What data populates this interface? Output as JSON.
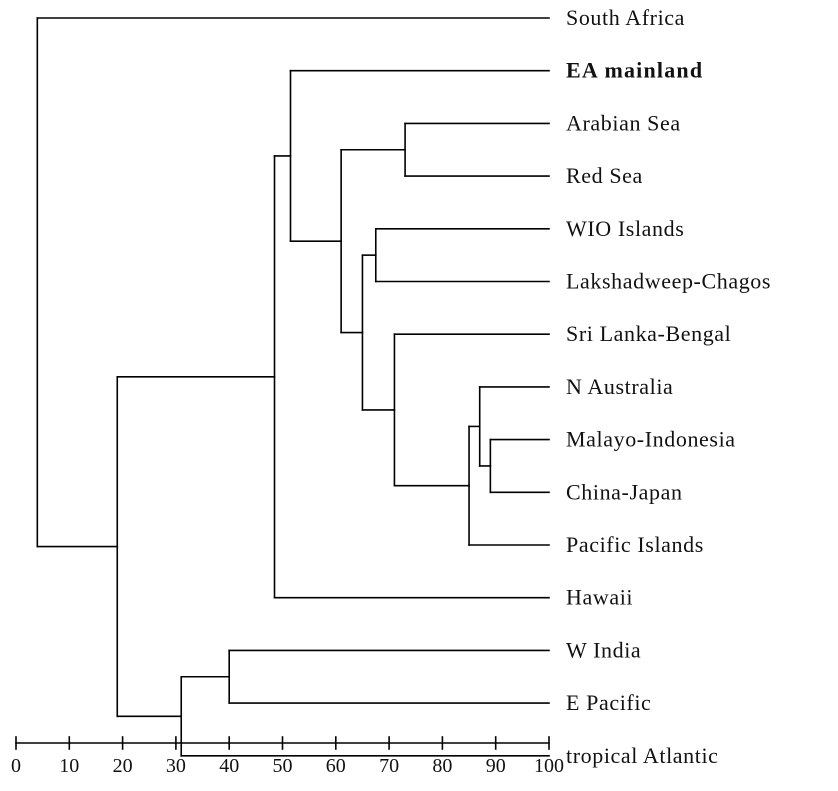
{
  "leaves": [
    {
      "label": "South Africa",
      "bold": false
    },
    {
      "label": "EA mainland",
      "bold": true
    },
    {
      "label": "Arabian Sea",
      "bold": false
    },
    {
      "label": "Red Sea",
      "bold": false
    },
    {
      "label": "WIO Islands",
      "bold": false
    },
    {
      "label": "Lakshadweep-Chagos",
      "bold": false
    },
    {
      "label": "Sri Lanka-Bengal",
      "bold": false
    },
    {
      "label": "N Australia",
      "bold": false
    },
    {
      "label": "Malayo-Indonesia",
      "bold": false
    },
    {
      "label": "China-Japan",
      "bold": false
    },
    {
      "label": "Pacific Islands",
      "bold": false
    },
    {
      "label": "Hawaii",
      "bold": false
    },
    {
      "label": "W India",
      "bold": false
    },
    {
      "label": "E Pacific",
      "bold": false
    },
    {
      "label": "tropical Atlantic",
      "bold": false
    }
  ],
  "axis": {
    "min": 0,
    "max": 100,
    "ticks": [
      0,
      10,
      20,
      30,
      40,
      50,
      60,
      70,
      80,
      90,
      100
    ],
    "tick_labels": [
      "0",
      "10",
      "20",
      "30",
      "40",
      "50",
      "60",
      "70",
      "80",
      "90",
      "100"
    ]
  },
  "merges": [
    {
      "id": "m_mi_cj",
      "children": [
        "Malayo-Indonesia",
        "China-Japan"
      ],
      "similarity": 89
    },
    {
      "id": "m_na",
      "children": [
        "N Australia",
        "m_mi_cj"
      ],
      "similarity": 87
    },
    {
      "id": "m_pi",
      "children": [
        "m_na",
        "Pacific Islands"
      ],
      "similarity": 85
    },
    {
      "id": "m_ar_rs",
      "children": [
        "Arabian Sea",
        "Red Sea"
      ],
      "similarity": 73
    },
    {
      "id": "m_sl",
      "children": [
        "Sri Lanka-Bengal",
        "m_pi"
      ],
      "similarity": 71
    },
    {
      "id": "m_wio",
      "children": [
        "WIO Islands",
        "Lakshadweep-Chagos"
      ],
      "similarity": 67.5
    },
    {
      "id": "m_wio_sl",
      "children": [
        "m_wio",
        "m_sl"
      ],
      "similarity": 65
    },
    {
      "id": "m_arab_block",
      "children": [
        "m_ar_rs",
        "m_wio_sl"
      ],
      "similarity": 61
    },
    {
      "id": "m_ea",
      "children": [
        "EA mainland",
        "m_arab_block"
      ],
      "similarity": 51.5
    },
    {
      "id": "m_hawaii",
      "children": [
        "m_ea",
        "Hawaii"
      ],
      "similarity": 48.5
    },
    {
      "id": "m_wi_ep",
      "children": [
        "W India",
        "E Pacific"
      ],
      "similarity": 40
    },
    {
      "id": "m_ta",
      "children": [
        "m_wi_ep",
        "tropical Atlantic"
      ],
      "similarity": 31
    },
    {
      "id": "m_big",
      "children": [
        "m_hawaii",
        "m_ta"
      ],
      "similarity": 19
    },
    {
      "id": "m_root",
      "children": [
        "South Africa",
        "m_big"
      ],
      "similarity": 4
    }
  ]
}
